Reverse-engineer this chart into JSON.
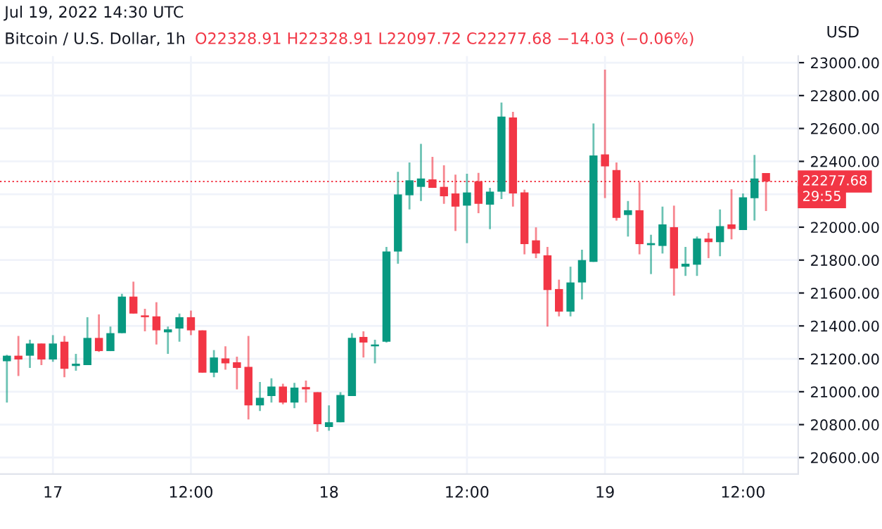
{
  "chart_data": {
    "type": "candlestick",
    "title": "Bitcoin / U.S. Dollar, 1h",
    "subtitle": "Jul 19, 2022 14:30 UTC",
    "ylabel": "USD",
    "annotations": [
      "O22328.91 H22328.91 L22097.72 C22277.68 −14.03 (−0.06%)",
      "29:55"
    ],
    "x": [
      "2022-07-16T20:00",
      "2022-07-16T21:00",
      "2022-07-16T22:00",
      "2022-07-16T23:00",
      "2022-07-17T00:00",
      "2022-07-17T01:00",
      "2022-07-17T02:00",
      "2022-07-17T03:00",
      "2022-07-17T04:00",
      "2022-07-17T05:00",
      "2022-07-17T06:00",
      "2022-07-17T07:00",
      "2022-07-17T08:00",
      "2022-07-17T09:00",
      "2022-07-17T10:00",
      "2022-07-17T11:00",
      "2022-07-17T12:00",
      "2022-07-17T13:00",
      "2022-07-17T14:00",
      "2022-07-17T15:00",
      "2022-07-17T16:00",
      "2022-07-17T17:00",
      "2022-07-17T18:00",
      "2022-07-17T19:00",
      "2022-07-17T20:00",
      "2022-07-17T21:00",
      "2022-07-17T22:00",
      "2022-07-17T23:00",
      "2022-07-18T00:00",
      "2022-07-18T01:00",
      "2022-07-18T02:00",
      "2022-07-18T03:00",
      "2022-07-18T04:00",
      "2022-07-18T05:00",
      "2022-07-18T06:00",
      "2022-07-18T07:00",
      "2022-07-18T08:00",
      "2022-07-18T09:00",
      "2022-07-18T10:00",
      "2022-07-18T11:00",
      "2022-07-18T12:00",
      "2022-07-18T13:00",
      "2022-07-18T14:00",
      "2022-07-18T15:00",
      "2022-07-18T16:00",
      "2022-07-18T17:00",
      "2022-07-18T18:00",
      "2022-07-18T19:00",
      "2022-07-18T20:00",
      "2022-07-18T21:00",
      "2022-07-18T22:00",
      "2022-07-18T23:00",
      "2022-07-19T00:00",
      "2022-07-19T01:00",
      "2022-07-19T02:00",
      "2022-07-19T03:00",
      "2022-07-19T04:00",
      "2022-07-19T05:00",
      "2022-07-19T06:00",
      "2022-07-19T07:00",
      "2022-07-19T08:00",
      "2022-07-19T09:00",
      "2022-07-19T10:00",
      "2022-07-19T11:00",
      "2022-07-19T12:00",
      "2022-07-19T13:00",
      "2022-07-19T14:00"
    ],
    "ohlc": [
      [
        21185,
        21224,
        20934,
        21219
      ],
      [
        21219,
        21339,
        21096,
        21196
      ],
      [
        21219,
        21316,
        21145,
        21293
      ],
      [
        21293,
        21293,
        21162,
        21196
      ],
      [
        21196,
        21344,
        21182,
        21293
      ],
      [
        21304,
        21339,
        21088,
        21139
      ],
      [
        21156,
        21230,
        21128,
        21170
      ],
      [
        21162,
        21453,
        21162,
        21327
      ],
      [
        21327,
        21470,
        21242,
        21247
      ],
      [
        21247,
        21396,
        21247,
        21356
      ],
      [
        21356,
        21595,
        21356,
        21578
      ],
      [
        21578,
        21669,
        21475,
        21475
      ],
      [
        21464,
        21504,
        21367,
        21453
      ],
      [
        21458,
        21544,
        21287,
        21373
      ],
      [
        21361,
        21396,
        21230,
        21379
      ],
      [
        21384,
        21475,
        21304,
        21453
      ],
      [
        21453,
        21493,
        21344,
        21373
      ],
      [
        21373,
        21373,
        21116,
        21116
      ],
      [
        21116,
        21253,
        21088,
        21208
      ],
      [
        21202,
        21276,
        21134,
        21173
      ],
      [
        21179,
        21213,
        21014,
        21145
      ],
      [
        21151,
        21339,
        20831,
        20917
      ],
      [
        20917,
        21059,
        20883,
        20963
      ],
      [
        20974,
        21082,
        20934,
        21031
      ],
      [
        21031,
        21048,
        20923,
        20934
      ],
      [
        20934,
        21054,
        20900,
        21025
      ],
      [
        21028,
        21068,
        20934,
        21014
      ],
      [
        20997,
        20997,
        20757,
        20803
      ],
      [
        20786,
        20917,
        20763,
        20814
      ],
      [
        20814,
        20997,
        20814,
        20980
      ],
      [
        20974,
        21356,
        20974,
        21327
      ],
      [
        21333,
        21367,
        21208,
        21299
      ],
      [
        21276,
        21316,
        21173,
        21287
      ],
      [
        21304,
        21880,
        21299,
        21852
      ],
      [
        21852,
        22336,
        21778,
        22199
      ],
      [
        22194,
        22393,
        22108,
        22285
      ],
      [
        22245,
        22507,
        22159,
        22296
      ],
      [
        22291,
        22427,
        22239,
        22239
      ],
      [
        22245,
        22376,
        22142,
        22188
      ],
      [
        22205,
        22319,
        21977,
        22125
      ],
      [
        22131,
        22325,
        21903,
        22211
      ],
      [
        22279,
        22330,
        22085,
        22142
      ],
      [
        22137,
        22239,
        21988,
        22216
      ],
      [
        22216,
        22758,
        22171,
        22672
      ],
      [
        22667,
        22701,
        22125,
        22205
      ],
      [
        22211,
        22228,
        21835,
        21897
      ],
      [
        21920,
        21999,
        21812,
        21840
      ],
      [
        21829,
        21880,
        21396,
        21618
      ],
      [
        21624,
        21681,
        21458,
        21487
      ],
      [
        21487,
        21760,
        21458,
        21664
      ],
      [
        21664,
        21863,
        21561,
        21800
      ],
      [
        21789,
        22630,
        21789,
        22436
      ],
      [
        22442,
        22957,
        22177,
        22370
      ],
      [
        22347,
        22393,
        22040,
        22057
      ],
      [
        22074,
        22159,
        21943,
        22103
      ],
      [
        22103,
        22273,
        21835,
        21897
      ],
      [
        21891,
        21954,
        21715,
        21903
      ],
      [
        21886,
        22125,
        21840,
        22017
      ],
      [
        22000,
        22131,
        21584,
        21749
      ],
      [
        21760,
        21880,
        21704,
        21778
      ],
      [
        21772,
        21943,
        21704,
        21931
      ],
      [
        21931,
        21966,
        21812,
        21909
      ],
      [
        21909,
        22108,
        21823,
        22006
      ],
      [
        22017,
        22231,
        21926,
        21989
      ],
      [
        21983,
        22205,
        21983,
        22182
      ],
      [
        22176,
        22439,
        22040,
        22296
      ],
      [
        22328.91,
        22328.91,
        22097.72,
        22277.68
      ]
    ],
    "colors": [
      "#089981",
      "#f23645",
      "#089981",
      "#f23645",
      "#089981",
      "#f23645",
      "#089981",
      "#089981",
      "#f23645",
      "#089981",
      "#089981",
      "#f23645",
      "#f23645",
      "#f23645",
      "#089981",
      "#089981",
      "#f23645",
      "#f23645",
      "#089981",
      "#f23645",
      "#f23645",
      "#f23645",
      "#089981",
      "#089981",
      "#f23645",
      "#089981",
      "#f23645",
      "#f23645",
      "#089981",
      "#089981",
      "#089981",
      "#f23645",
      "#089981",
      "#089981",
      "#089981",
      "#089981",
      "#089981",
      "#f23645",
      "#f23645",
      "#f23645",
      "#089981",
      "#f23645",
      "#089981",
      "#089981",
      "#f23645",
      "#f23645",
      "#f23645",
      "#f23645",
      "#f23645",
      "#089981",
      "#089981",
      "#089981",
      "#f23645",
      "#f23645",
      "#089981",
      "#f23645",
      "#089981",
      "#089981",
      "#f23645",
      "#089981",
      "#089981",
      "#f23645",
      "#089981",
      "#f23645",
      "#089981",
      "#089981",
      "#f23645"
    ],
    "xlim": [
      "2022-07-16T19:24",
      "2022-07-19T16:48"
    ],
    "xticks": [
      {
        "value": "2022-07-17",
        "label": "17"
      },
      {
        "value": "2022-07-17T12:00",
        "label": "12:00"
      },
      {
        "value": "2022-07-18",
        "label": "18"
      },
      {
        "value": "2022-07-18T12:00",
        "label": "12:00"
      },
      {
        "value": "2022-07-19",
        "label": "19"
      },
      {
        "value": "2022-07-19T12:00",
        "label": "12:00"
      }
    ],
    "ylim": [
      20500,
      23040
    ],
    "yticks": [
      {
        "value": 20600,
        "label": "20600.00"
      },
      {
        "value": 20800,
        "label": "20800.00"
      },
      {
        "value": 21000,
        "label": "21000.00"
      },
      {
        "value": 21200,
        "label": "21200.00"
      },
      {
        "value": 21400,
        "label": "21400.00"
      },
      {
        "value": 21600,
        "label": "21600.00"
      },
      {
        "value": 21800,
        "label": "21800.00"
      },
      {
        "value": 22000,
        "label": "22000.00"
      },
      {
        "value": 22200,
        "label": null
      },
      {
        "value": 22400,
        "label": "22400.00"
      },
      {
        "value": 22600,
        "label": "22600.00"
      },
      {
        "value": 22800,
        "label": "22800.00"
      },
      {
        "value": 23000,
        "label": "23000.00"
      }
    ],
    "ref_lines": [
      {
        "axis": "y",
        "value": 22277.68,
        "label": "22277.68",
        "color": "#f23645",
        "line_style": "dotted"
      }
    ],
    "grid": true
  }
}
